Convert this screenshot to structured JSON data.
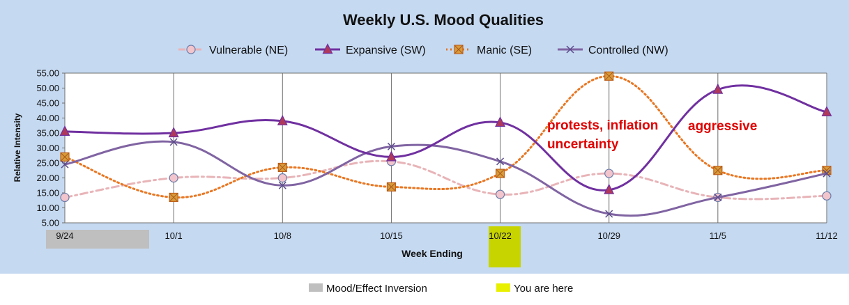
{
  "chart_data": {
    "type": "line",
    "title": "Weekly U.S. Mood Qualities",
    "xlabel": "Week Ending",
    "ylabel": "Relative Intensity",
    "categories": [
      "9/24",
      "10/1",
      "10/8",
      "10/15",
      "10/22",
      "10/29",
      "11/5",
      "11/12"
    ],
    "ylim": [
      5,
      55
    ],
    "yticks": [
      "5.00",
      "10.00",
      "15.00",
      "20.00",
      "25.00",
      "30.00",
      "35.00",
      "40.00",
      "45.00",
      "50.00",
      "55.00"
    ],
    "grid": "vertical lines at each category",
    "legend_placement": "top",
    "series": [
      {
        "name": "Vulnerable (NE)",
        "color": "#e8b4b8",
        "marker": "circle",
        "dash": "dash-dot",
        "values": [
          13.5,
          20,
          20,
          25.5,
          14.5,
          21.5,
          13.5,
          14
        ]
      },
      {
        "name": "Expansive (SW)",
        "color": "#7030a0",
        "marker": "triangle",
        "dash": "solid",
        "values": [
          35.5,
          35,
          39,
          27,
          38.5,
          16,
          49.5,
          42
        ]
      },
      {
        "name": "Manic (SE)",
        "color": "#e87722",
        "marker": "square",
        "dash": "dotted",
        "values": [
          27,
          13.5,
          23.5,
          17,
          21.5,
          54,
          22.5,
          22.5
        ]
      },
      {
        "name": "Controlled (NW)",
        "color": "#8064a2",
        "marker": "x",
        "dash": "solid",
        "values": [
          24.5,
          32,
          17.5,
          30.5,
          25.5,
          8,
          13.5,
          21.5
        ]
      }
    ],
    "annotations": [
      {
        "text": "protests, inflation",
        "color": "#e00000"
      },
      {
        "text": "uncertainty",
        "color": "#e00000"
      },
      {
        "text": "aggressive",
        "color": "#e00000"
      }
    ],
    "highlights": [
      {
        "category": "9/24",
        "color": "#bfbfbf",
        "meaning": "Mood/Effect Inversion"
      },
      {
        "category": "10/22",
        "color": "#c8d400",
        "meaning": "You are here"
      }
    ],
    "key": [
      {
        "label": "Mood/Effect Inversion",
        "color": "#bfbfbf"
      },
      {
        "label": "You are here",
        "color": "#e8f000"
      }
    ]
  }
}
